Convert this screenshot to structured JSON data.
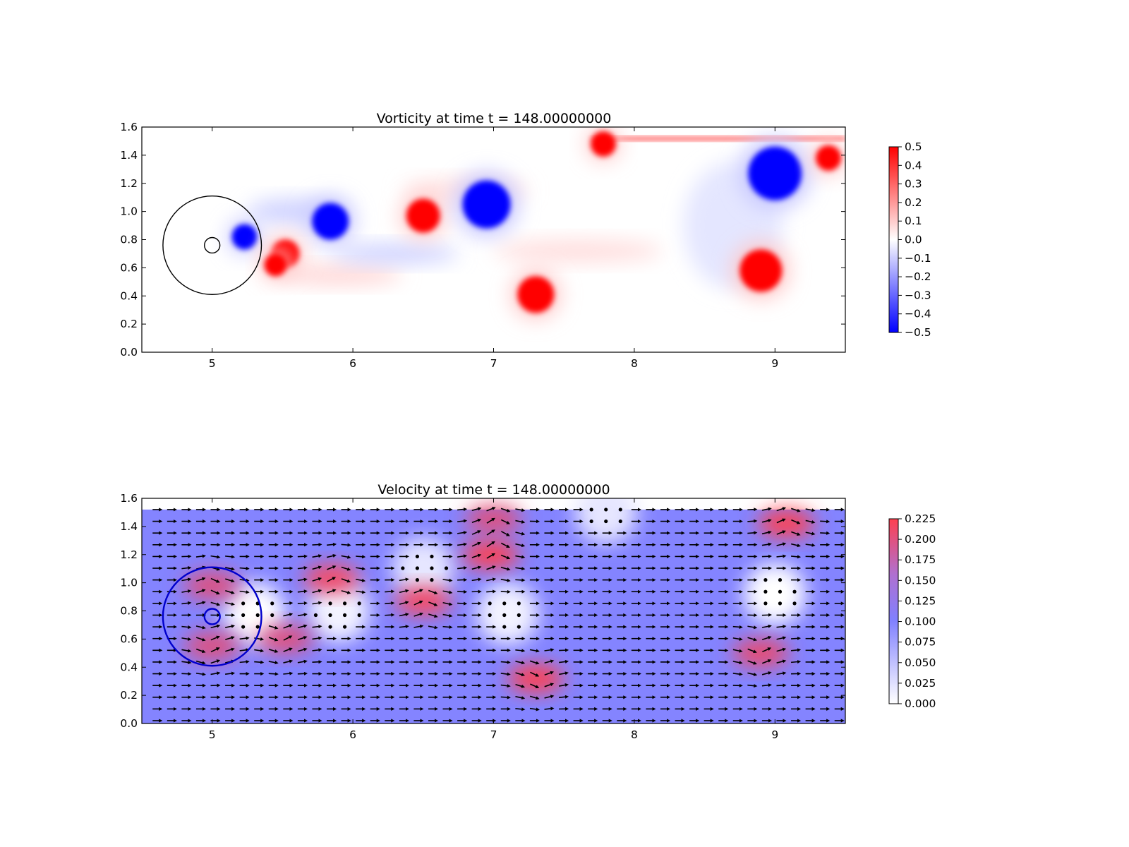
{
  "chart_data": [
    {
      "type": "heatmap",
      "title": "Vorticity at time t =   148.00000000",
      "xlim": [
        4.5,
        9.5
      ],
      "ylim": [
        0.0,
        1.6
      ],
      "xticks": [
        "5",
        "6",
        "7",
        "8",
        "9"
      ],
      "yticks": [
        "0.0",
        "0.2",
        "0.4",
        "0.6",
        "0.8",
        "1.0",
        "1.2",
        "1.4",
        "1.6"
      ],
      "colormap": "bwr",
      "clim": [
        -0.5,
        0.5
      ],
      "colorbar_ticks": [
        "0.5",
        "0.4",
        "0.3",
        "0.2",
        "0.1",
        "0.0",
        "−0.1",
        "−0.2",
        "−0.3",
        "−0.4",
        "−0.5"
      ],
      "domain_top": 1.52,
      "vortices": [
        {
          "x": 5.84,
          "y": 0.93,
          "value": -0.5,
          "r": 0.13
        },
        {
          "x": 5.23,
          "y": 0.82,
          "value": -0.5,
          "r": 0.09
        },
        {
          "x": 5.52,
          "y": 0.7,
          "value": 0.5,
          "r": 0.1
        },
        {
          "x": 5.45,
          "y": 0.62,
          "value": 0.45,
          "r": 0.08
        },
        {
          "x": 6.5,
          "y": 0.97,
          "value": 0.5,
          "r": 0.12
        },
        {
          "x": 6.95,
          "y": 1.05,
          "value": -0.5,
          "r": 0.17
        },
        {
          "x": 7.3,
          "y": 0.41,
          "value": 0.5,
          "r": 0.13
        },
        {
          "x": 8.9,
          "y": 0.58,
          "value": 0.5,
          "r": 0.15
        },
        {
          "x": 9.0,
          "y": 1.27,
          "value": -0.5,
          "r": 0.19
        },
        {
          "x": 9.38,
          "y": 1.38,
          "value": 0.5,
          "r": 0.09
        },
        {
          "x": 7.78,
          "y": 1.48,
          "value": 0.5,
          "r": 0.09
        }
      ],
      "circles": [
        {
          "x": 5.0,
          "y": 0.76,
          "r": 0.35,
          "color": "#000000"
        },
        {
          "x": 5.0,
          "y": 0.76,
          "r": 0.055,
          "color": "#000000"
        }
      ]
    },
    {
      "type": "heatmap",
      "title": "Velocity at time t =   148.00000000",
      "xlim": [
        4.5,
        9.5
      ],
      "ylim": [
        0.0,
        1.6
      ],
      "xticks": [
        "5",
        "6",
        "7",
        "8",
        "9"
      ],
      "yticks": [
        "0.0",
        "0.2",
        "0.4",
        "0.6",
        "0.8",
        "1.0",
        "1.2",
        "1.4",
        "1.6"
      ],
      "colormap": "white-blue-red",
      "clim": [
        0.0,
        0.23
      ],
      "colorbar_ticks": [
        "0.225",
        "0.200",
        "0.175",
        "0.150",
        "0.125",
        "0.100",
        "0.075",
        "0.050",
        "0.025",
        "0.000"
      ],
      "domain_top": 1.52,
      "background_speed": 0.1,
      "overlay": "quiver",
      "fast_regions": [
        {
          "x": 5.0,
          "y": 0.98,
          "speed": 0.2
        },
        {
          "x": 5.0,
          "y": 0.55,
          "speed": 0.2
        },
        {
          "x": 5.52,
          "y": 0.6,
          "speed": 0.2
        },
        {
          "x": 5.85,
          "y": 1.03,
          "speed": 0.22
        },
        {
          "x": 6.5,
          "y": 0.87,
          "speed": 0.22
        },
        {
          "x": 6.98,
          "y": 1.2,
          "speed": 0.23
        },
        {
          "x": 7.0,
          "y": 1.45,
          "speed": 0.2
        },
        {
          "x": 7.3,
          "y": 0.32,
          "speed": 0.23
        },
        {
          "x": 9.08,
          "y": 1.42,
          "speed": 0.23
        },
        {
          "x": 8.9,
          "y": 0.5,
          "speed": 0.21
        }
      ],
      "slow_regions": [
        {
          "x": 5.3,
          "y": 0.78,
          "speed": 0.0
        },
        {
          "x": 5.9,
          "y": 0.8,
          "speed": 0.01
        },
        {
          "x": 6.5,
          "y": 1.1,
          "speed": 0.02
        },
        {
          "x": 7.1,
          "y": 0.78,
          "speed": 0.01
        },
        {
          "x": 9.0,
          "y": 0.92,
          "speed": 0.0
        },
        {
          "x": 7.8,
          "y": 1.5,
          "speed": 0.02
        }
      ],
      "circles": [
        {
          "x": 5.0,
          "y": 0.76,
          "r": 0.35,
          "color": "#0000cc"
        },
        {
          "x": 5.0,
          "y": 0.76,
          "r": 0.055,
          "color": "#0000cc"
        }
      ]
    }
  ]
}
